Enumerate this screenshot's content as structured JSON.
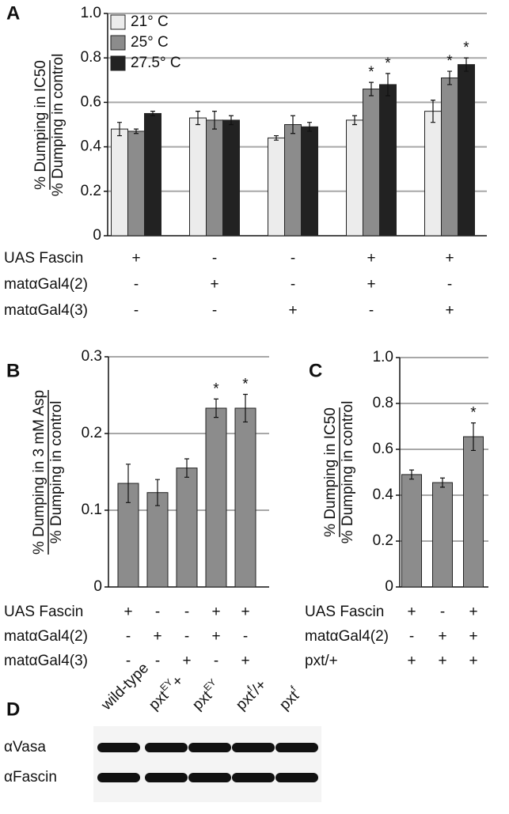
{
  "chart_data": [
    {
      "type": "bar",
      "panel_label": "A",
      "ylabel": {
        "numerator": "% Dumping in IC50",
        "denominator": "% Dumping in control"
      },
      "ylim": [
        0,
        1
      ],
      "yticks": [
        0,
        0.2,
        0.4,
        0.6,
        0.8,
        {
          "value": 1,
          "label": "1.0"
        }
      ],
      "grid": true,
      "legend": "top-left",
      "series": [
        {
          "name": "21° C",
          "color": "#ececec",
          "values": [
            0.48,
            0.53,
            0.44,
            0.52,
            0.56
          ],
          "errors": [
            0.03,
            0.03,
            0.01,
            0.02,
            0.05
          ],
          "significance": [
            null,
            null,
            null,
            null,
            null
          ]
        },
        {
          "name": "25° C",
          "color": "#8c8c8c",
          "values": [
            0.47,
            0.52,
            0.5,
            0.66,
            0.71
          ],
          "errors": [
            0.01,
            0.04,
            0.04,
            0.03,
            0.03
          ],
          "significance": [
            null,
            null,
            null,
            "*",
            "*"
          ]
        },
        {
          "name": "27.5° C",
          "color": "#222222",
          "values": [
            0.55,
            0.52,
            0.49,
            0.68,
            0.77
          ],
          "errors": [
            0.01,
            0.02,
            0.02,
            0.05,
            0.03
          ],
          "significance": [
            null,
            null,
            null,
            "*",
            "*"
          ]
        }
      ],
      "genotype_rows": [
        {
          "label": "UAS Fascin",
          "values": [
            "+",
            "-",
            "-",
            "+",
            "+"
          ]
        },
        {
          "label": "matαGal4(2)",
          "values": [
            "-",
            "+",
            "-",
            "+",
            "-"
          ]
        },
        {
          "label": "matαGal4(3)",
          "values": [
            "-",
            "-",
            "+",
            "-",
            "+"
          ]
        }
      ]
    },
    {
      "type": "bar",
      "panel_label": "B",
      "ylabel": {
        "numerator": "% Dumping in 3 mM Asp",
        "denominator": "% Dumping in control"
      },
      "ylim": [
        0,
        0.3
      ],
      "yticks": [
        0,
        0.1,
        0.2,
        0.3
      ],
      "grid": true,
      "series": [
        {
          "color": "#8c8c8c",
          "values": [
            0.135,
            0.123,
            0.155,
            0.233,
            0.233
          ],
          "errors": [
            0.025,
            0.017,
            0.012,
            0.012,
            0.018
          ],
          "significance": [
            null,
            null,
            null,
            "*",
            "*"
          ]
        }
      ],
      "genotype_rows": [
        {
          "label": "UAS Fascin",
          "values": [
            "+",
            "-",
            "-",
            "+",
            "+"
          ]
        },
        {
          "label": "matαGal4(2)",
          "values": [
            "-",
            "+",
            "-",
            "+",
            "-"
          ]
        },
        {
          "label": "matαGal4(3)",
          "values": [
            "-",
            "-",
            "+",
            "-",
            "+"
          ]
        }
      ]
    },
    {
      "type": "bar",
      "panel_label": "C",
      "ylabel": {
        "numerator": "% Dumping in IC50",
        "denominator": "% Dumping in control"
      },
      "ylim": [
        0,
        1
      ],
      "yticks": [
        0,
        0.2,
        0.4,
        0.6,
        0.8,
        {
          "value": 1,
          "label": "1.0"
        }
      ],
      "grid": true,
      "series": [
        {
          "color": "#8c8c8c",
          "values": [
            0.49,
            0.455,
            0.655
          ],
          "errors": [
            0.02,
            0.02,
            0.06
          ],
          "significance": [
            null,
            null,
            "*"
          ]
        }
      ],
      "genotype_rows": [
        {
          "label": "UAS Fascin",
          "values": [
            "+",
            "-",
            "+"
          ]
        },
        {
          "label": "matαGal4(2)",
          "values": [
            "-",
            "+",
            "+"
          ]
        },
        {
          "label": "pxt/+",
          "values": [
            "+",
            "+",
            "+"
          ]
        }
      ]
    }
  ],
  "blot": {
    "panel_label": "D",
    "lanes": [
      {
        "text": "wild-type",
        "sup": null,
        "after": null
      },
      {
        "text": "pxt",
        "sup": "EY",
        "after": "+"
      },
      {
        "text": "pxt",
        "sup": "EY",
        "after": null
      },
      {
        "text": "pxt",
        "sup": "f",
        "after": "/+"
      },
      {
        "text": "pxt",
        "sup": "f",
        "after": null
      }
    ],
    "rows": [
      "αVasa",
      "αFascin"
    ]
  }
}
